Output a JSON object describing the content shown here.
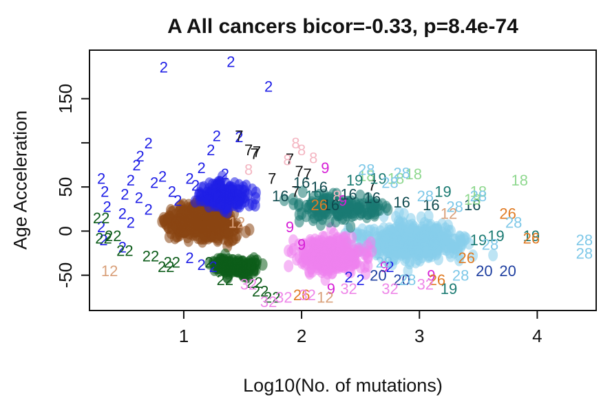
{
  "chart_data": {
    "type": "scatter",
    "title": "A All cancers bicor=-0.33, p=8.4e-74",
    "xlabel": "Log10(No. of mutations)",
    "ylabel": "Age Acceleration",
    "xlim": [
      0.2,
      4.5
    ],
    "ylim": [
      -90,
      205
    ],
    "x_ticks": [
      1,
      2,
      3,
      4
    ],
    "y_ticks": [
      -50,
      0,
      50,
      150
    ],
    "grid": false,
    "marker": "cluster number",
    "legend": "none",
    "series": [
      {
        "label": "2",
        "color": "#1f1fe6",
        "points": [
          [
            0.83,
            186
          ],
          [
            1.4,
            192
          ],
          [
            1.72,
            164
          ],
          [
            1.28,
            108
          ],
          [
            1.47,
            107
          ],
          [
            0.7,
            100
          ],
          [
            0.63,
            85
          ],
          [
            1.23,
            92
          ],
          [
            0.6,
            75
          ],
          [
            0.55,
            58
          ],
          [
            0.82,
            62
          ],
          [
            0.75,
            55
          ],
          [
            0.5,
            42
          ],
          [
            0.9,
            45
          ],
          [
            1.05,
            60
          ],
          [
            1.1,
            52
          ],
          [
            0.62,
            38
          ],
          [
            0.95,
            35
          ],
          [
            0.3,
            60
          ],
          [
            0.33,
            45
          ],
          [
            0.48,
            20
          ],
          [
            0.35,
            28
          ],
          [
            0.3,
            5
          ],
          [
            0.32,
            -10
          ],
          [
            0.48,
            -18
          ],
          [
            0.55,
            10
          ],
          [
            0.7,
            25
          ],
          [
            1.15,
            72
          ],
          [
            1.35,
            65
          ],
          [
            1.25,
            -40
          ],
          [
            1.15,
            -38
          ],
          [
            1.05,
            -30
          ],
          [
            2.75,
            -40
          ],
          [
            2.4,
            -52
          ],
          [
            2.5,
            -55
          ]
        ]
      },
      {
        "label": "7",
        "color": "#111111",
        "points": [
          [
            1.47,
            108
          ],
          [
            1.55,
            92
          ],
          [
            1.6,
            88
          ],
          [
            1.62,
            90
          ],
          [
            1.9,
            82
          ],
          [
            1.98,
            68
          ],
          [
            2.05,
            65
          ],
          [
            1.95,
            45
          ],
          [
            1.75,
            60
          ],
          [
            2.6,
            52
          ]
        ]
      },
      {
        "label": "8",
        "color": "#f4b6c2",
        "points": [
          [
            1.95,
            100
          ],
          [
            2.0,
            92
          ],
          [
            1.88,
            81
          ],
          [
            2.1,
            83
          ],
          [
            1.55,
            70
          ],
          [
            2.3,
            40
          ]
        ]
      },
      {
        "label": "9",
        "color": "#d61fd6",
        "points": [
          [
            2.2,
            72
          ],
          [
            2.35,
            35
          ],
          [
            1.9,
            5
          ],
          [
            2.0,
            -15
          ],
          [
            3.1,
            -50
          ],
          [
            2.7,
            -40
          ],
          [
            2.25,
            -65
          ]
        ]
      },
      {
        "label": "12",
        "color": "#d9a07a",
        "points": [
          [
            0.37,
            -45
          ],
          [
            2.2,
            -75
          ],
          [
            1.45,
            10
          ],
          [
            3.25,
            20
          ]
        ]
      },
      {
        "label": "16",
        "color": "#0f4a4f",
        "points": [
          [
            2.15,
            50
          ],
          [
            2.0,
            55
          ],
          [
            2.4,
            42
          ],
          [
            1.82,
            40
          ],
          [
            2.6,
            38
          ],
          [
            2.85,
            33
          ],
          [
            3.1,
            30
          ],
          [
            2.25,
            30
          ],
          [
            3.45,
            30
          ]
        ]
      },
      {
        "label": "18",
        "color": "#8fd88f",
        "points": [
          [
            3.85,
            58
          ],
          [
            2.55,
            63
          ],
          [
            2.8,
            60
          ],
          [
            3.5,
            45
          ],
          [
            2.95,
            65
          ],
          [
            3.45,
            36
          ]
        ]
      },
      {
        "label": "19",
        "color": "#1a7a72",
        "points": [
          [
            2.45,
            58
          ],
          [
            2.65,
            60
          ],
          [
            3.2,
            45
          ],
          [
            3.65,
            -5
          ],
          [
            3.95,
            -5
          ],
          [
            3.25,
            -65
          ],
          [
            3.5,
            -10
          ],
          [
            2.1,
            40
          ]
        ]
      },
      {
        "label": "20",
        "color": "#1f3fa0",
        "points": [
          [
            3.75,
            -45
          ],
          [
            2.85,
            -55
          ],
          [
            3.55,
            -45
          ],
          [
            2.65,
            -50
          ]
        ]
      },
      {
        "label": "22",
        "color": "#0d5c1a",
        "points": [
          [
            0.3,
            15
          ],
          [
            0.32,
            -8
          ],
          [
            0.4,
            -5
          ],
          [
            0.85,
            -40
          ],
          [
            0.9,
            -35
          ],
          [
            0.72,
            -28
          ],
          [
            1.25,
            -35
          ],
          [
            1.6,
            -58
          ],
          [
            1.75,
            -75
          ],
          [
            1.65,
            -68
          ],
          [
            0.5,
            -22
          ],
          [
            1.35,
            -55
          ]
        ]
      },
      {
        "label": "26",
        "color": "#e07b24",
        "points": [
          [
            3.75,
            20
          ],
          [
            3.95,
            -8
          ],
          [
            2.0,
            -72
          ],
          [
            3.4,
            -30
          ],
          [
            3.15,
            -55
          ],
          [
            2.15,
            30
          ]
        ]
      },
      {
        "label": "28",
        "color": "#7ec8e8",
        "points": [
          [
            2.55,
            70
          ],
          [
            2.85,
            66
          ],
          [
            2.75,
            55
          ],
          [
            3.05,
            40
          ],
          [
            3.5,
            40
          ],
          [
            3.3,
            28
          ],
          [
            3.8,
            10
          ],
          [
            3.6,
            -15
          ],
          [
            4.4,
            -10
          ],
          [
            4.4,
            -25
          ],
          [
            2.9,
            -55
          ],
          [
            3.35,
            -50
          ],
          [
            2.7,
            -35
          ]
        ]
      },
      {
        "label": "32",
        "color": "#ee86e8",
        "points": [
          [
            1.55,
            -60
          ],
          [
            1.72,
            -80
          ],
          [
            1.85,
            -75
          ],
          [
            2.4,
            -65
          ],
          [
            2.75,
            -65
          ],
          [
            2.05,
            -72
          ],
          [
            3.05,
            -60
          ]
        ]
      }
    ],
    "dense_clusters": [
      {
        "label": "brown",
        "color": "#8b4513",
        "center": [
          1.15,
          10
        ],
        "spread": [
          0.38,
          22
        ]
      },
      {
        "label": "light-blue",
        "color": "#87ceeb",
        "center": [
          2.95,
          -12
        ],
        "spread": [
          0.55,
          28
        ]
      },
      {
        "label": "pink",
        "color": "#ee82ee",
        "center": [
          2.25,
          -28
        ],
        "spread": [
          0.35,
          25
        ]
      },
      {
        "label": "dark-green",
        "color": "#0d5c1a",
        "center": [
          1.45,
          -40
        ],
        "spread": [
          0.3,
          12
        ]
      },
      {
        "label": "teal",
        "color": "#1a7a72",
        "center": [
          2.35,
          25
        ],
        "spread": [
          0.45,
          20
        ]
      },
      {
        "label": "navy",
        "color": "#1f1fe6",
        "center": [
          1.35,
          40
        ],
        "spread": [
          0.3,
          20
        ]
      }
    ]
  }
}
